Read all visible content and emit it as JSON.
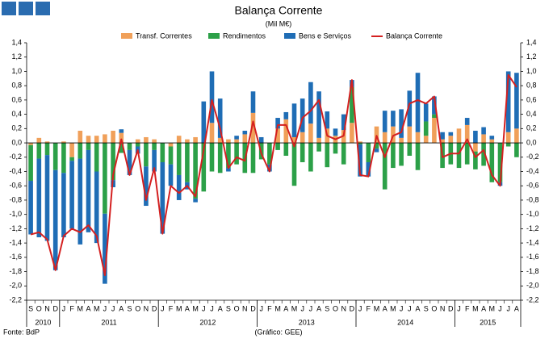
{
  "chart_data": {
    "type": "bar",
    "title": "Balança Corrente",
    "subtitle": "(Mil M€)",
    "source": "Fonte: BdP",
    "credit": "(Gráfico: GEE)",
    "categories": [
      "S",
      "O",
      "N",
      "D",
      "J",
      "F",
      "M",
      "A",
      "M",
      "J",
      "J",
      "A",
      "S",
      "O",
      "N",
      "D",
      "J",
      "F",
      "M",
      "A",
      "M",
      "J",
      "J",
      "A",
      "S",
      "O",
      "N",
      "D",
      "J",
      "F",
      "M",
      "A",
      "M",
      "J",
      "J",
      "A",
      "S",
      "O",
      "N",
      "D",
      "J",
      "F",
      "M",
      "A",
      "M",
      "J",
      "J",
      "A",
      "S",
      "O",
      "N",
      "D",
      "J",
      "F",
      "M",
      "A",
      "M",
      "J",
      "J",
      "A"
    ],
    "year_labels": [
      "2010",
      "2011",
      "2012",
      "2013",
      "2014",
      "2015"
    ],
    "series": [
      {
        "name": "Transf. Correntes",
        "color": "#f0a05a",
        "values": [
          -0.03,
          0.07,
          0.02,
          0.0,
          0.02,
          -0.2,
          0.17,
          0.1,
          0.1,
          0.12,
          0.17,
          0.14,
          0.0,
          0.05,
          0.08,
          0.05,
          0.0,
          -0.05,
          0.1,
          0.05,
          0.08,
          0.0,
          0.28,
          0.07,
          0.05,
          0.05,
          0.12,
          0.42,
          0.0,
          0.0,
          0.2,
          0.33,
          0.08,
          0.15,
          0.27,
          0.07,
          0.2,
          0.1,
          0.18,
          0.28,
          0.02,
          0.0,
          0.23,
          0.15,
          0.23,
          0.07,
          0.23,
          0.15,
          0.1,
          0.35,
          0.05,
          0.1,
          0.2,
          0.25,
          -0.12,
          0.12,
          0.05,
          0.0,
          0.15,
          0.2
        ]
      },
      {
        "name": "Rendimentos",
        "color": "#2ca048",
        "values": [
          -0.5,
          -0.22,
          -0.17,
          -0.38,
          -0.42,
          -0.05,
          -0.22,
          -0.1,
          -0.4,
          -0.99,
          -0.52,
          -0.14,
          -0.1,
          -0.05,
          -0.33,
          -0.1,
          -0.27,
          -0.25,
          -0.45,
          -0.55,
          -0.78,
          -0.68,
          -0.4,
          -0.42,
          -0.35,
          -0.3,
          -0.42,
          -0.42,
          -0.23,
          -0.3,
          -0.1,
          -0.18,
          -0.6,
          -0.27,
          -0.4,
          -0.12,
          -0.34,
          -0.15,
          -0.3,
          0.5,
          -0.02,
          -0.27,
          -0.08,
          -0.65,
          -0.35,
          -0.32,
          -0.18,
          -0.38,
          0.2,
          0.05,
          -0.35,
          -0.3,
          -0.35,
          -0.3,
          -0.25,
          -0.32,
          -0.55,
          -0.55,
          -0.05,
          -0.2
        ]
      },
      {
        "name": "Bens e Serviços",
        "color": "#1f6db5",
        "values": [
          -0.75,
          -1.1,
          -1.2,
          -1.4,
          -0.9,
          -0.95,
          -1.2,
          -1.15,
          -1.0,
          -0.98,
          -0.1,
          0.05,
          -0.35,
          -0.1,
          -0.55,
          -0.3,
          -1.0,
          -0.3,
          -0.35,
          -0.1,
          -0.05,
          0.58,
          0.72,
          0.55,
          -0.05,
          0.05,
          0.05,
          0.3,
          0.08,
          -0.1,
          0.15,
          0.1,
          0.47,
          0.47,
          0.58,
          0.65,
          0.24,
          0.1,
          0.22,
          0.1,
          -0.45,
          -0.2,
          -0.05,
          0.3,
          0.22,
          0.4,
          0.5,
          0.83,
          0.25,
          0.25,
          0.1,
          0.05,
          0.0,
          0.1,
          0.17,
          0.1,
          0.05,
          -0.05,
          0.85,
          0.78
        ]
      },
      {
        "name": "Balança Corrente",
        "color": "#d42020",
        "type": "line",
        "values": [
          -1.28,
          -1.25,
          -1.35,
          -1.78,
          -1.3,
          -1.2,
          -1.25,
          -1.15,
          -1.3,
          -1.85,
          -0.45,
          0.05,
          -0.45,
          -0.1,
          -0.8,
          -0.35,
          -1.27,
          -0.6,
          -0.7,
          -0.6,
          -0.75,
          -0.1,
          0.6,
          0.2,
          -0.35,
          -0.2,
          -0.25,
          0.3,
          -0.15,
          -0.4,
          0.25,
          0.25,
          -0.05,
          0.35,
          0.45,
          0.6,
          0.1,
          0.05,
          0.1,
          0.88,
          -0.45,
          -0.47,
          0.1,
          -0.2,
          0.1,
          0.15,
          0.55,
          0.6,
          0.55,
          0.65,
          -0.2,
          -0.15,
          -0.15,
          0.05,
          -0.2,
          -0.1,
          -0.45,
          -0.6,
          0.95,
          0.78
        ]
      }
    ],
    "ylim": [
      -2.2,
      1.4
    ],
    "yticks": [
      {
        "value": -2.2,
        "label": "-2,2"
      },
      {
        "value": -2.0,
        "label": "-2,0"
      },
      {
        "value": -1.8,
        "label": "-1,8"
      },
      {
        "value": -1.6,
        "label": "-1,6"
      },
      {
        "value": -1.4,
        "label": "-1,4"
      },
      {
        "value": -1.2,
        "label": "-1,2"
      },
      {
        "value": -1.0,
        "label": "-1,0"
      },
      {
        "value": -0.8,
        "label": "-0,8"
      },
      {
        "value": -0.6,
        "label": "-0,6"
      },
      {
        "value": -0.4,
        "label": "-0,4"
      },
      {
        "value": -0.2,
        "label": "-0,2"
      },
      {
        "value": 0,
        "label": "0,0"
      },
      {
        "value": 0.2,
        "label": "0,2"
      },
      {
        "value": 0.4,
        "label": "0,4"
      },
      {
        "value": 0.6,
        "label": "0,6"
      },
      {
        "value": 0.8,
        "label": "0,8"
      },
      {
        "value": 1.0,
        "label": "1,0"
      },
      {
        "value": 1.2,
        "label": "1,2"
      },
      {
        "value": 1.4,
        "label": "1,4"
      }
    ],
    "legend": "top"
  }
}
